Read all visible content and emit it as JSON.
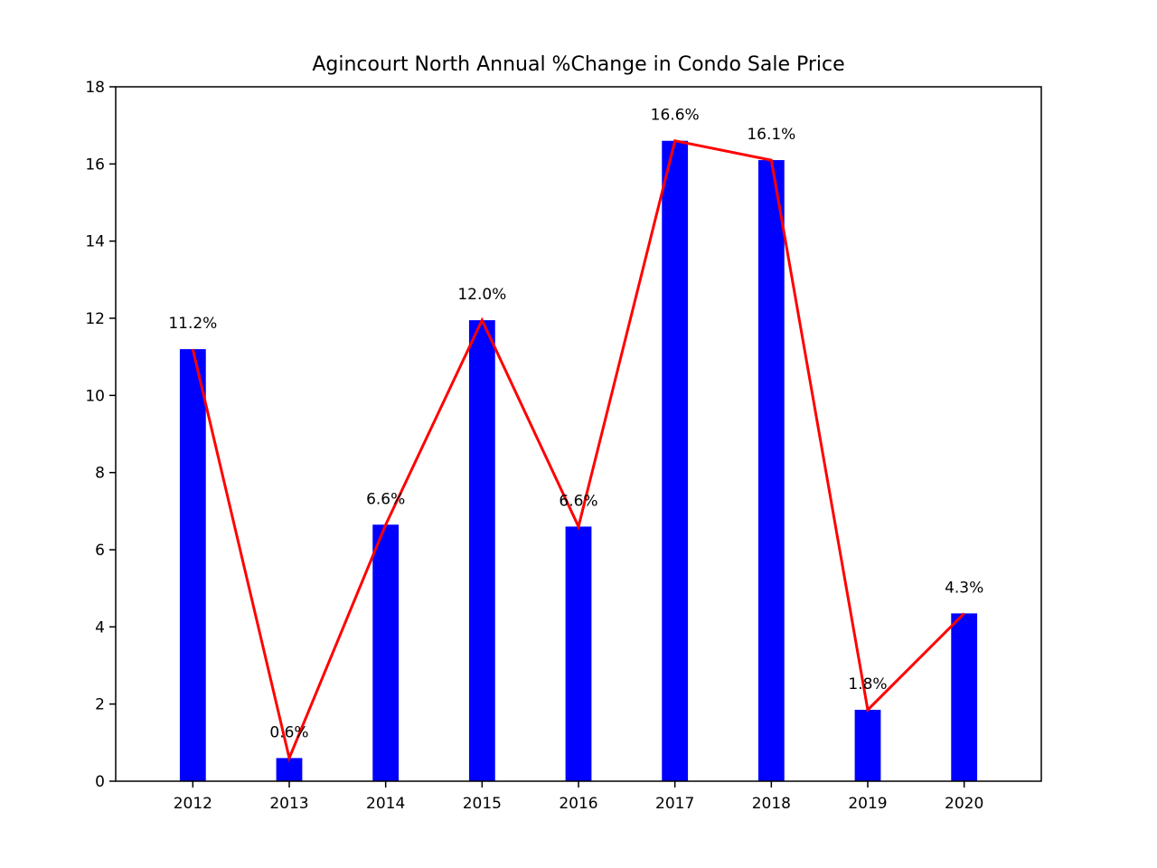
{
  "chart_data": {
    "type": "bar",
    "title": "Agincourt North Annual %Change in Condo Sale Price",
    "xlabel": "",
    "ylabel": "",
    "categories": [
      "2012",
      "2013",
      "2014",
      "2015",
      "2016",
      "2017",
      "2018",
      "2019",
      "2020"
    ],
    "values": [
      11.2,
      0.6,
      6.65,
      11.95,
      6.6,
      16.6,
      16.1,
      1.85,
      4.35
    ],
    "data_labels": [
      "11.2%",
      "0.6%",
      "6.6%",
      "12.0%",
      "6.6%",
      "16.6%",
      "16.1%",
      "1.8%",
      "4.3%"
    ],
    "ylim": [
      0,
      18
    ],
    "yticks": [
      "0",
      "2",
      "4",
      "6",
      "8",
      "10",
      "12",
      "14",
      "16",
      "18"
    ],
    "bar_color": "#0000ff",
    "line_color": "#ff0000",
    "overlay_line": true,
    "grid": false,
    "legend": "none"
  }
}
